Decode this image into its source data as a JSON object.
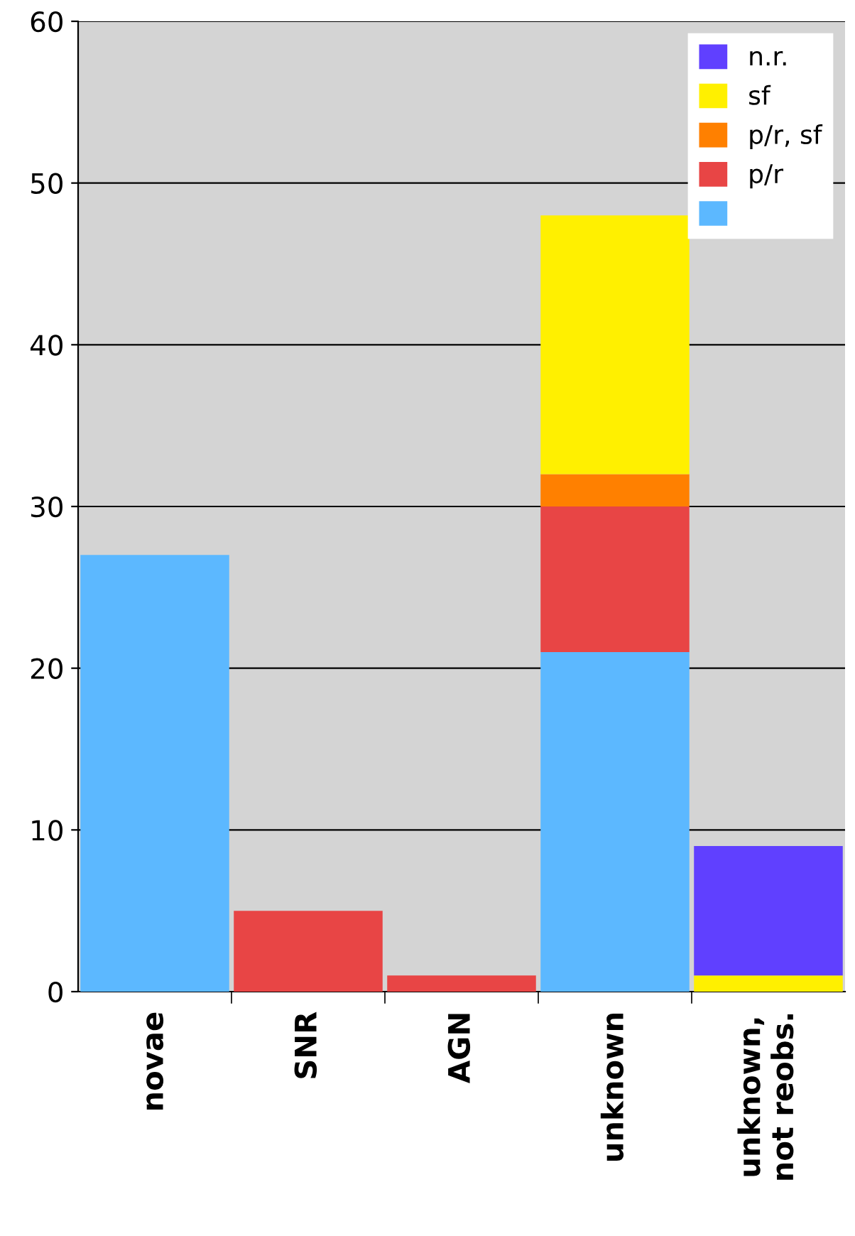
{
  "chart_data": {
    "type": "bar",
    "stacked": true,
    "categories": [
      "novae",
      "SNR",
      "AGN",
      "unknown",
      "unknown,\nnot reobs."
    ],
    "series": [
      {
        "color": "#5cb8ff",
        "values": [
          27,
          0,
          0,
          21,
          0
        ]
      },
      {
        "name": "p/r",
        "color": "#e84545",
        "values": [
          0,
          5,
          1,
          9,
          0
        ]
      },
      {
        "name": "p/r, sf",
        "color": "#ff8000",
        "values": [
          0,
          0,
          0,
          2,
          0
        ]
      },
      {
        "name": "sf",
        "color": "#fff000",
        "values": [
          0,
          0,
          0,
          16,
          1
        ]
      },
      {
        "name": "n.r.",
        "color": "#6040ff",
        "values": [
          0,
          0,
          0,
          0,
          8
        ]
      }
    ],
    "ylim": [
      0,
      60
    ],
    "yticks": [
      0,
      10,
      20,
      30,
      40,
      50,
      60
    ],
    "grid": "y",
    "legend": "top right"
  }
}
